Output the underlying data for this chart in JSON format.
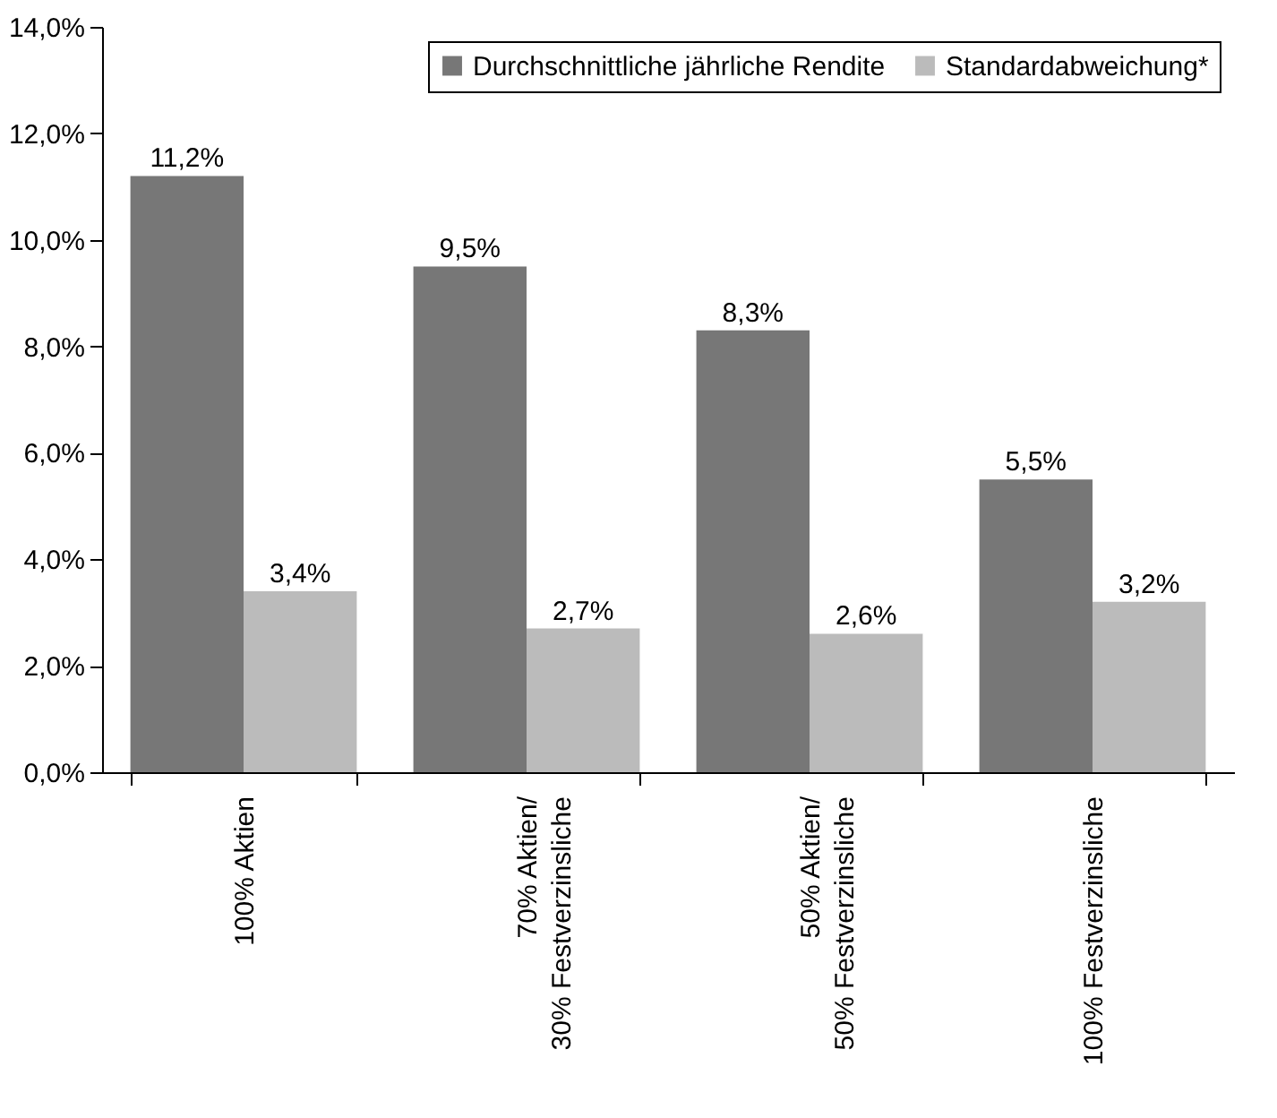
{
  "chart_data": {
    "type": "bar",
    "categories": [
      "100% Aktien",
      "70% Aktien/\n30% Festverzinsliche",
      "50% Aktien/\n50% Festverzinsliche",
      "100% Festverzinsliche"
    ],
    "series": [
      {
        "name": "Durchschnittliche jährliche Rendite",
        "color": "#777777",
        "values": [
          11.2,
          9.5,
          8.3,
          5.5
        ],
        "value_labels": [
          "11,2%",
          "9,5%",
          "8,3%",
          "5,5%"
        ]
      },
      {
        "name": "Standardabweichung*",
        "color": "#bbbbbb",
        "values": [
          3.4,
          2.7,
          2.6,
          3.2
        ],
        "value_labels": [
          "3,4%",
          "2,7%",
          "2,6%",
          "3,2%"
        ]
      }
    ],
    "ylim": [
      0,
      14
    ],
    "yticks": [
      {
        "value": 0,
        "label": "0,0%"
      },
      {
        "value": 2,
        "label": "2,0%"
      },
      {
        "value": 4,
        "label": "4,0%"
      },
      {
        "value": 6,
        "label": "6,0%"
      },
      {
        "value": 8,
        "label": "8,0%"
      },
      {
        "value": 10,
        "label": "10,0%"
      },
      {
        "value": 12,
        "label": "12,0%"
      },
      {
        "value": 14,
        "label": "14,0%"
      }
    ],
    "grid": false,
    "legend": "top right"
  }
}
